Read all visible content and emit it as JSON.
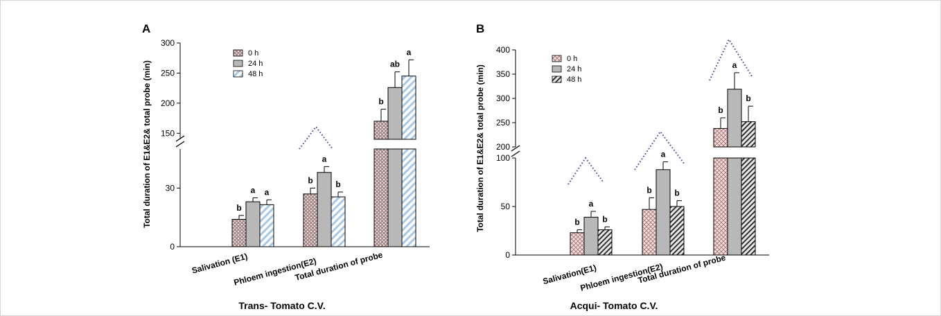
{
  "chart_data": [
    {
      "panel_label": "A",
      "type": "bar",
      "categories": [
        "Salivation (E1)",
        "Phloem ingestion(E2)",
        "Total duration of probe"
      ],
      "series": [
        {
          "name": "0 h",
          "values": [
            14,
            27,
            170
          ],
          "errors": [
            2,
            3,
            20
          ]
        },
        {
          "name": "24 h",
          "values": [
            23,
            38,
            226
          ],
          "errors": [
            2,
            3,
            26
          ]
        },
        {
          "name": "48 h",
          "values": [
            21.5,
            25.5,
            245
          ],
          "errors": [
            2.5,
            2.5,
            27
          ]
        }
      ],
      "significance": [
        [
          "b",
          "b",
          "b"
        ],
        [
          "a",
          "a",
          "ab"
        ],
        [
          "a",
          "b",
          "a"
        ]
      ],
      "ylabel": "Total duration of E1&E2& total probe (min)",
      "xlabel": "Trans- Tomato C.V.",
      "y_ticks": [
        "0",
        "30",
        "150",
        "200",
        "250",
        "300"
      ],
      "y_axis_break": [
        50,
        140
      ],
      "legend_position": "top-left",
      "colors": {
        "0 h": "#a08080",
        "24 h": "#b8b8b8",
        "48 h": "#cfe0ee"
      }
    },
    {
      "panel_label": "B",
      "type": "bar",
      "categories": [
        "Salivation(E1)",
        "Phloem ingestion(E2)",
        "Total duration of probe"
      ],
      "series": [
        {
          "name": "0 h",
          "values": [
            23,
            47,
            238
          ],
          "errors": [
            3,
            12,
            22
          ]
        },
        {
          "name": "24 h",
          "values": [
            39,
            88,
            319
          ],
          "errors": [
            6,
            8,
            34
          ]
        },
        {
          "name": "48 h",
          "values": [
            26,
            50,
            252
          ],
          "errors": [
            3,
            6,
            32
          ]
        }
      ],
      "significance": [
        [
          "b",
          "b",
          "b"
        ],
        [
          "a",
          "a",
          "a"
        ],
        [
          "b",
          "b",
          "b"
        ]
      ],
      "ylabel": "Total duration of E1&E2& total probe (min)",
      "xlabel": "Acqui- Tomato C.V.",
      "y_ticks": [
        "0",
        "50",
        "100",
        "200",
        "250",
        "300",
        "350",
        "400"
      ],
      "y_axis_break": [
        100,
        200
      ],
      "legend_position": "top-left",
      "colors": {
        "0 h": "#e3c7c7",
        "24 h": "#b8b8b8",
        "48 h": "#d3d3d3"
      }
    }
  ]
}
